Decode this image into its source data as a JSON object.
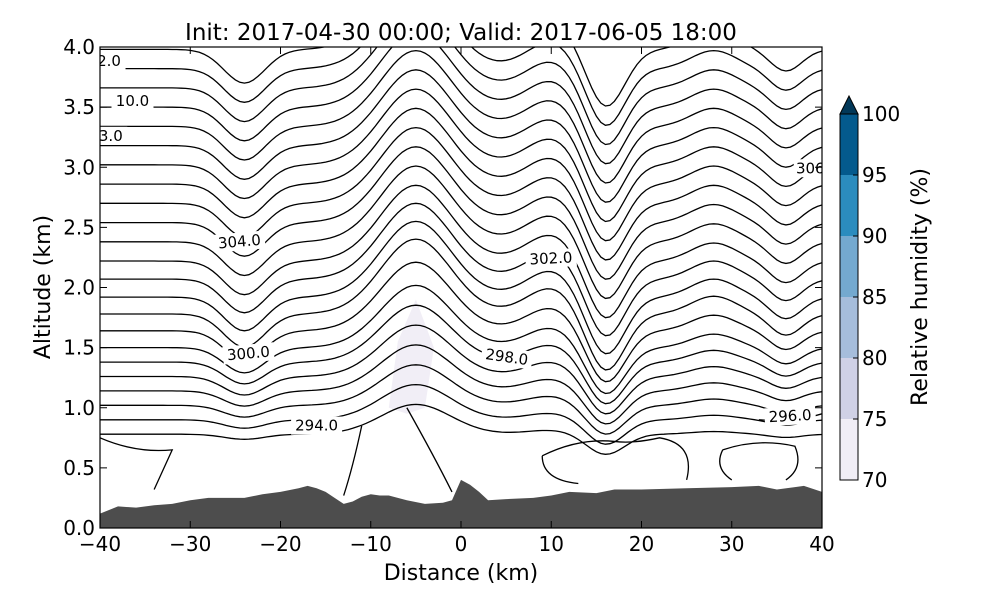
{
  "chart_data": {
    "type": "contour",
    "title": "Init: 2017-04-30 00:00; Valid: 2017-06-05 18:00",
    "xlabel": "Distance (km)",
    "ylabel": "Altitude (km)",
    "xlim": [
      -40,
      40
    ],
    "ylim": [
      0,
      4
    ],
    "xticks": [
      -40,
      -30,
      -20,
      -10,
      0,
      10,
      20,
      30,
      40
    ],
    "xtick_labels": [
      "−40",
      "−30",
      "−20",
      "−10",
      "0",
      "10",
      "20",
      "30",
      "40"
    ],
    "yticks": [
      0,
      0.5,
      1,
      1.5,
      2,
      2.5,
      3,
      3.5,
      4
    ],
    "ytick_labels": [
      "0.0",
      "0.5",
      "1.0",
      "1.5",
      "2.0",
      "2.5",
      "3.0",
      "3.5",
      "4.0"
    ],
    "grid": false,
    "terrain": {
      "color": "#4d4d4d",
      "x": [
        -40,
        -38,
        -36,
        -34,
        -32,
        -30,
        -28,
        -26,
        -24,
        -22,
        -20,
        -18,
        -17,
        -16,
        -15,
        -14,
        -13,
        -12,
        -11,
        -10,
        -9,
        -8,
        -6,
        -4,
        -2,
        -1,
        0,
        1,
        2,
        3,
        5,
        8,
        10,
        12,
        15,
        17,
        20,
        25,
        30,
        33,
        35,
        37,
        38,
        40
      ],
      "y": [
        0.12,
        0.18,
        0.17,
        0.19,
        0.2,
        0.23,
        0.25,
        0.25,
        0.25,
        0.28,
        0.3,
        0.33,
        0.35,
        0.33,
        0.3,
        0.25,
        0.2,
        0.22,
        0.26,
        0.28,
        0.27,
        0.27,
        0.23,
        0.2,
        0.21,
        0.23,
        0.4,
        0.36,
        0.3,
        0.23,
        0.24,
        0.25,
        0.27,
        0.3,
        0.29,
        0.32,
        0.32,
        0.33,
        0.34,
        0.35,
        0.32,
        0.34,
        0.35,
        0.3
      ]
    },
    "humidity_shading": {
      "level": "70-75",
      "x": [
        -5,
        -7,
        -8,
        -6,
        -4,
        -3,
        -5
      ],
      "y": [
        1.9,
        1.55,
        1.0,
        0.95,
        1.0,
        1.5,
        1.9
      ]
    },
    "contour_labels": [
      {
        "text": "2.0",
        "x": -39,
        "y": 3.84,
        "rot": 0
      },
      {
        "text": "10.0",
        "x": -36.4,
        "y": 3.51,
        "rot": 0
      },
      {
        "text": "3.0",
        "x": -38.8,
        "y": 3.22,
        "rot": 0
      },
      {
        "text": "306",
        "x": 38.7,
        "y": 2.95,
        "rot": 0
      },
      {
        "text": "304.0",
        "x": -24.5,
        "y": 2.34,
        "rot": -5
      },
      {
        "text": "302.0",
        "x": 10,
        "y": 2.2,
        "rot": -3
      },
      {
        "text": "300.0",
        "x": -23.5,
        "y": 1.41,
        "rot": -5
      },
      {
        "text": "298.0",
        "x": 5,
        "y": 1.38,
        "rot": 8
      },
      {
        "text": "294.0",
        "x": -16,
        "y": 0.81,
        "rot": 0
      },
      {
        "text": "296.0",
        "x": 36.5,
        "y": 0.89,
        "rot": -3
      }
    ],
    "colorbar": {
      "label": "Relative humidity (%)",
      "ticks": [
        "70",
        "75",
        "80",
        "85",
        "90",
        "95",
        "100"
      ],
      "bins": [
        {
          "range": [
            70,
            75
          ],
          "color": "#f1eef6"
        },
        {
          "range": [
            75,
            80
          ],
          "color": "#d0d1e6"
        },
        {
          "range": [
            80,
            85
          ],
          "color": "#a6bddb"
        },
        {
          "range": [
            85,
            90
          ],
          "color": "#74a9cf"
        },
        {
          "range": [
            90,
            95
          ],
          "color": "#2b8cbe"
        },
        {
          "range": [
            95,
            100
          ],
          "color": "#045a8d"
        }
      ],
      "extend_color": "#023858",
      "extend": "max"
    }
  }
}
